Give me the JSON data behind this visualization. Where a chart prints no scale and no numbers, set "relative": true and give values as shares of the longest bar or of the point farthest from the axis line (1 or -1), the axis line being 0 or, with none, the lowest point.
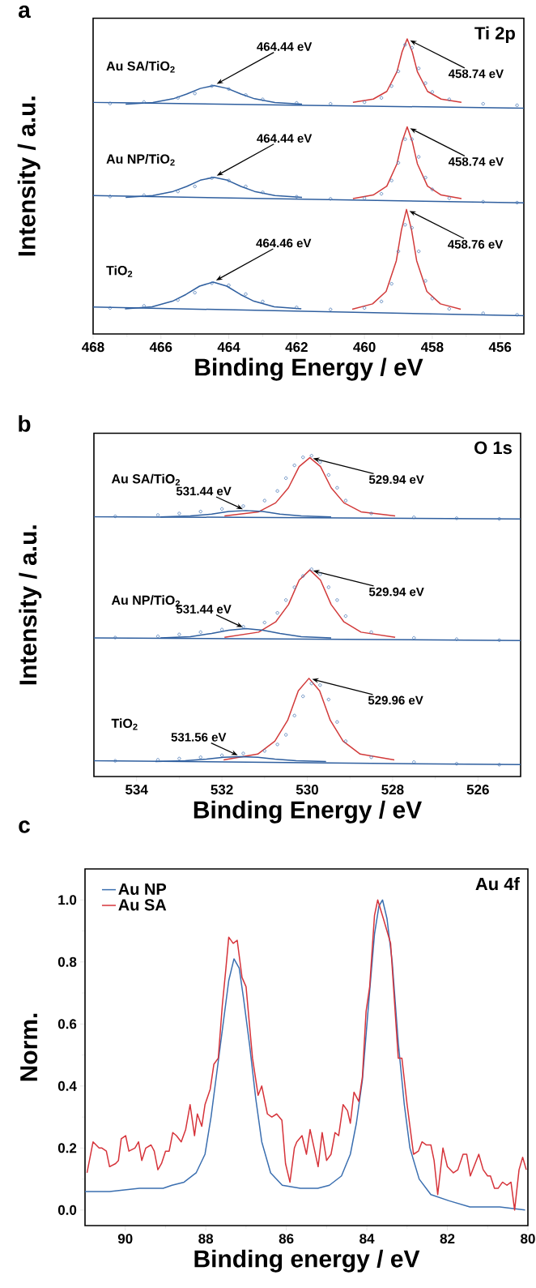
{
  "chart_data": [
    {
      "type": "line",
      "title": "Ti 2p",
      "xlabel": "Binding Energy / eV",
      "ylabel": "Intensity / a.u.",
      "relative": true,
      "xlim": [
        468,
        455.3
      ],
      "xticks": [
        468,
        466,
        464,
        462,
        460,
        458,
        456
      ],
      "series": [
        {
          "type": "line",
          "color": "#2f5f9f",
          "x": [
            467.04,
            466.24,
            465.64,
            465.24,
            464.84,
            464.44,
            464.04,
            463.64,
            463.24,
            462.64,
            461.84
          ],
          "values": [
            0.779,
            0.784,
            0.797,
            0.813,
            0.832,
            0.842,
            0.832,
            0.813,
            0.797,
            0.784,
            0.779
          ]
        },
        {
          "type": "line",
          "color": "#d23a3a",
          "x": [
            460.34,
            459.74,
            459.34,
            459.04,
            458.89,
            458.74,
            458.59,
            458.44,
            458.14,
            457.74,
            457.14
          ],
          "values": [
            0.785,
            0.796,
            0.822,
            0.889,
            0.956,
            1.0,
            0.956,
            0.889,
            0.822,
            0.796,
            0.785
          ]
        },
        {
          "type": "line",
          "color": "#2f5f9f",
          "x": [
            468,
            455.3
          ],
          "values": [
            0.785,
            0.765
          ]
        },
        {
          "type": "scatter",
          "name": "Au SA/TiO$_{2}$",
          "color": "#4a78b5",
          "marker": "circle",
          "x": [
            467.5,
            466.5,
            465.5,
            465,
            464.5,
            464,
            463.5,
            463,
            462,
            461,
            460,
            459.5,
            459.2,
            459,
            458.8,
            458.6,
            458.4,
            458.2,
            458,
            457.5,
            456.5,
            455.5
          ],
          "values": [
            0.781,
            0.786,
            0.8,
            0.815,
            0.84,
            0.83,
            0.81,
            0.795,
            0.783,
            0.78,
            0.785,
            0.8,
            0.84,
            0.89,
            0.98,
            0.97,
            0.9,
            0.85,
            0.82,
            0.795,
            0.78,
            0.775
          ]
        },
        {
          "type": "line",
          "color": "#2f5f9f",
          "x": [
            467.04,
            466.24,
            465.64,
            465.24,
            464.84,
            464.44,
            464.04,
            463.64,
            463.24,
            462.64,
            461.84
          ],
          "values": [
            0.463,
            0.469,
            0.483,
            0.5,
            0.521,
            0.531,
            0.521,
            0.5,
            0.483,
            0.469,
            0.463
          ]
        },
        {
          "type": "line",
          "color": "#d23a3a",
          "x": [
            460.34,
            459.74,
            459.34,
            459.04,
            458.89,
            458.74,
            458.59,
            458.44,
            458.14,
            457.74,
            457.14
          ],
          "values": [
            0.459,
            0.471,
            0.501,
            0.577,
            0.652,
            0.702,
            0.652,
            0.577,
            0.501,
            0.471,
            0.459
          ]
        },
        {
          "type": "line",
          "color": "#2f5f9f",
          "x": [
            468,
            455.3
          ],
          "values": [
            0.469,
            0.444
          ]
        },
        {
          "type": "scatter",
          "name": "Au NP/TiO$_{2}$",
          "color": "#4a78b5",
          "marker": "circle",
          "x": [
            467.5,
            466.5,
            465.5,
            465,
            464.5,
            464,
            463.5,
            463,
            462,
            461,
            460,
            459.5,
            459.2,
            459,
            458.8,
            458.6,
            458.4,
            458.2,
            458,
            457.5,
            456.5,
            455.5
          ],
          "values": [
            0.466,
            0.47,
            0.483,
            0.5,
            0.528,
            0.52,
            0.5,
            0.48,
            0.465,
            0.458,
            0.46,
            0.475,
            0.52,
            0.58,
            0.66,
            0.66,
            0.6,
            0.53,
            0.49,
            0.46,
            0.448,
            0.445
          ]
        },
        {
          "type": "line",
          "color": "#2f5f9f",
          "x": [
            467.06,
            466.26,
            465.66,
            465.26,
            464.86,
            464.46,
            464.06,
            463.66,
            463.26,
            462.66,
            461.86
          ],
          "values": [
            0.085,
            0.092,
            0.111,
            0.134,
            0.162,
            0.176,
            0.162,
            0.134,
            0.111,
            0.092,
            0.085
          ]
        },
        {
          "type": "line",
          "color": "#d23a3a",
          "x": [
            460.36,
            459.76,
            459.36,
            459.06,
            458.91,
            458.76,
            458.61,
            458.46,
            458.16,
            457.76,
            457.16
          ],
          "values": [
            0.084,
            0.102,
            0.144,
            0.248,
            0.352,
            0.422,
            0.352,
            0.248,
            0.144,
            0.102,
            0.084
          ]
        },
        {
          "type": "line",
          "color": "#2f5f9f",
          "x": [
            468,
            455.3
          ],
          "values": [
            0.091,
            0.062
          ]
        },
        {
          "type": "scatter",
          "name": "TiO$_{2}$",
          "color": "#4a78b5",
          "marker": "circle",
          "x": [
            467.5,
            466.5,
            465.5,
            465,
            464.5,
            464,
            463.5,
            463,
            462,
            461,
            460,
            459.5,
            459.2,
            459,
            458.8,
            458.6,
            458.4,
            458.2,
            458,
            457.5,
            456.5,
            455.5
          ],
          "values": [
            0.088,
            0.095,
            0.115,
            0.14,
            0.172,
            0.165,
            0.135,
            0.11,
            0.09,
            0.083,
            0.088,
            0.11,
            0.17,
            0.28,
            0.37,
            0.36,
            0.28,
            0.18,
            0.12,
            0.085,
            0.07,
            0.065
          ]
        }
      ],
      "annotations": [
        "a",
        {
          "text": "464.44 eV",
          "x": 464.44,
          "y": 0.842
        },
        {
          "text": "458.74 eV",
          "x": 458.74,
          "y": 1.0
        },
        {
          "text": "464.44 eV",
          "x": 464.44,
          "y": 0.531
        },
        {
          "text": "458.74 eV",
          "x": 458.74,
          "y": 0.702
        },
        {
          "text": "464.46 eV",
          "x": 464.46,
          "y": 0.176
        },
        {
          "text": "458.76 eV",
          "x": 458.76,
          "y": 0.422
        }
      ]
    },
    {
      "type": "line",
      "title": "O 1s",
      "xlabel": "Binding Energy / eV",
      "ylabel": "Intensity / a.u.",
      "relative": true,
      "xlim": [
        535,
        525
      ],
      "xticks": [
        534,
        532,
        530,
        528,
        526
      ],
      "series": [
        {
          "type": "line",
          "color": "#d23a3a",
          "x": [
            531.94,
            531.14,
            530.74,
            530.44,
            530.19,
            529.94,
            529.69,
            529.44,
            529.14,
            528.74,
            527.94
          ],
          "values": [
            0.812,
            0.825,
            0.853,
            0.9,
            0.966,
            0.994,
            0.966,
            0.9,
            0.853,
            0.825,
            0.812
          ]
        },
        {
          "type": "line",
          "color": "#2f5f9f",
          "x": [
            533.44,
            532.74,
            532.24,
            531.84,
            531.44,
            531.04,
            530.64,
            530.14,
            529.44
          ],
          "values": [
            0.809,
            0.812,
            0.818,
            0.826,
            0.829,
            0.826,
            0.818,
            0.812,
            0.809
          ]
        },
        {
          "type": "line",
          "color": "#2f5f9f",
          "x": [
            535,
            525
          ],
          "values": [
            0.81,
            0.803
          ]
        },
        {
          "type": "scatter",
          "name": "Au SA/TiO$_{2}$",
          "color": "#4a78b5",
          "marker": "circle",
          "x": [
            534.5,
            533.5,
            533,
            532.5,
            532,
            531.5,
            531,
            530.7,
            530.5,
            530.3,
            530.1,
            529.9,
            529.7,
            529.5,
            529.3,
            529.1,
            528.5,
            527.5,
            526.5,
            525.5
          ],
          "values": [
            0.811,
            0.815,
            0.82,
            0.826,
            0.834,
            0.843,
            0.86,
            0.89,
            0.93,
            0.97,
            0.995,
            1.0,
            0.98,
            0.94,
            0.9,
            0.86,
            0.82,
            0.808,
            0.805,
            0.803
          ]
        },
        {
          "type": "line",
          "color": "#d23a3a",
          "x": [
            531.94,
            531.14,
            530.74,
            530.44,
            530.19,
            529.94,
            529.69,
            529.44,
            529.14,
            528.74,
            527.94
          ],
          "values": [
            0.434,
            0.45,
            0.482,
            0.536,
            0.612,
            0.644,
            0.612,
            0.536,
            0.482,
            0.45,
            0.434
          ]
        },
        {
          "type": "line",
          "color": "#2f5f9f",
          "x": [
            533.44,
            532.74,
            532.24,
            531.84,
            531.44,
            531.04,
            530.64,
            530.14,
            529.44
          ],
          "values": [
            0.432,
            0.436,
            0.446,
            0.456,
            0.461,
            0.456,
            0.446,
            0.436,
            0.432
          ]
        },
        {
          "type": "line",
          "color": "#2f5f9f",
          "x": [
            535,
            525
          ],
          "values": [
            0.432,
            0.424
          ]
        },
        {
          "type": "scatter",
          "name": "Au NP/TiO$_{2}$",
          "color": "#4a78b5",
          "marker": "circle",
          "x": [
            534.5,
            533.5,
            533,
            532.5,
            532,
            531.5,
            531,
            530.7,
            530.5,
            530.3,
            530.1,
            529.9,
            529.7,
            529.5,
            529.3,
            529.1,
            528.5,
            527.5,
            526.5,
            525.5
          ],
          "values": [
            0.433,
            0.437,
            0.443,
            0.45,
            0.458,
            0.467,
            0.48,
            0.51,
            0.55,
            0.59,
            0.625,
            0.646,
            0.63,
            0.59,
            0.55,
            0.5,
            0.45,
            0.432,
            0.428,
            0.425
          ]
        },
        {
          "type": "line",
          "color": "#d23a3a",
          "x": [
            531.96,
            531.16,
            530.76,
            530.46,
            530.21,
            529.96,
            529.71,
            529.46,
            529.16,
            528.76,
            527.96
          ],
          "values": [
            0.052,
            0.07,
            0.11,
            0.175,
            0.267,
            0.306,
            0.267,
            0.175,
            0.11,
            0.07,
            0.052
          ]
        },
        {
          "type": "line",
          "color": "#2f5f9f",
          "x": [
            533.56,
            532.86,
            532.36,
            531.96,
            531.56,
            531.16,
            530.76,
            530.26,
            529.56
          ],
          "values": [
            0.047,
            0.049,
            0.054,
            0.06,
            0.062,
            0.06,
            0.054,
            0.049,
            0.047
          ]
        },
        {
          "type": "line",
          "color": "#2f5f9f",
          "x": [
            535,
            525
          ],
          "values": [
            0.049,
            0.037
          ]
        },
        {
          "type": "scatter",
          "name": "TiO$_{2}$",
          "color": "#4a78b5",
          "marker": "circle",
          "x": [
            534.5,
            533.5,
            533,
            532.5,
            532,
            531.5,
            531,
            530.7,
            530.5,
            530.3,
            530.1,
            529.9,
            529.7,
            529.5,
            529.3,
            529.1,
            528.5,
            527.5,
            526.5,
            525.5
          ],
          "values": [
            0.049,
            0.052,
            0.056,
            0.06,
            0.066,
            0.072,
            0.08,
            0.1,
            0.13,
            0.19,
            0.25,
            0.29,
            0.285,
            0.24,
            0.17,
            0.11,
            0.06,
            0.045,
            0.04,
            0.037
          ]
        }
      ],
      "annotations": [
        "b",
        {
          "text": "531.44 eV",
          "x": 531.44,
          "y": 0.829
        },
        {
          "text": "529.94 eV",
          "x": 529.94,
          "y": 0.994
        },
        {
          "text": "531.44 eV",
          "x": 531.44,
          "y": 0.461
        },
        {
          "text": "529.94 eV",
          "x": 529.94,
          "y": 0.644
        },
        {
          "text": "531.56 eV",
          "x": 531.56,
          "y": 0.062
        },
        {
          "text": "529.96 eV",
          "x": 529.96,
          "y": 0.306
        }
      ]
    },
    {
      "type": "line",
      "title": "Au 4f",
      "xlabel": "Binding energy / eV",
      "ylabel": "Norm.",
      "legend": "top left",
      "xlim": [
        91,
        80
      ],
      "xticks": [
        90,
        88,
        86,
        84,
        82,
        80
      ],
      "ylim": [
        -0.05,
        1.1
      ],
      "yticks": [
        {
          "value": 0,
          "label": "0.0"
        },
        0.2,
        0.4,
        0.6,
        0.8,
        {
          "value": 1,
          "label": "1.0"
        }
      ],
      "series": [
        {
          "name": "Au NP",
          "color": "#3b6fb0",
          "x": [
            91,
            90.39,
            89.65,
            89.06,
            88.84,
            88.54,
            88.24,
            88.02,
            87.87,
            87.73,
            87.58,
            87.43,
            87.3,
            87.17,
            87.06,
            86.91,
            86.76,
            86.61,
            86.39,
            86.1,
            85.65,
            85.22,
            84.93,
            84.63,
            84.41,
            84.26,
            84.11,
            83.96,
            83.81,
            83.7,
            83.61,
            83.5,
            83.37,
            83.22,
            83.07,
            82.93,
            82.7,
            82.41,
            81.96,
            81.44,
            80.7,
            80.07
          ],
          "values": [
            0.06,
            0.06,
            0.07,
            0.07,
            0.08,
            0.09,
            0.12,
            0.18,
            0.3,
            0.44,
            0.59,
            0.74,
            0.81,
            0.78,
            0.68,
            0.53,
            0.36,
            0.22,
            0.12,
            0.08,
            0.07,
            0.07,
            0.08,
            0.11,
            0.18,
            0.28,
            0.42,
            0.66,
            0.89,
            0.98,
            1.0,
            0.94,
            0.8,
            0.54,
            0.34,
            0.2,
            0.1,
            0.05,
            0.03,
            0.01,
            0.01,
            0.0
          ]
        },
        {
          "name": "Au SA",
          "color": "#d6333a",
          "x": [
            90.95,
            90.8,
            90.65,
            90.58,
            90.47,
            90.39,
            90.24,
            90.17,
            90.1,
            89.99,
            89.91,
            89.76,
            89.67,
            89.59,
            89.49,
            89.36,
            89.28,
            89.19,
            89.1,
            89.0,
            88.91,
            88.82,
            88.73,
            88.61,
            88.5,
            88.39,
            88.28,
            88.21,
            88.1,
            88.02,
            87.89,
            87.8,
            87.69,
            87.59,
            87.5,
            87.43,
            87.32,
            87.22,
            87.1,
            87.0,
            86.84,
            86.7,
            86.61,
            86.47,
            86.36,
            86.24,
            86.11,
            86.02,
            85.91,
            85.8,
            85.74,
            85.61,
            85.5,
            85.41,
            85.21,
            85.11,
            85.0,
            84.89,
            84.79,
            84.7,
            84.59,
            84.48,
            84.41,
            84.32,
            84.2,
            84.11,
            84.02,
            83.93,
            83.81,
            83.73,
            83.59,
            83.41,
            83.22,
            83.13,
            83.0,
            82.84,
            82.72,
            82.63,
            82.52,
            82.41,
            82.33,
            82.24,
            82.11,
            82.0,
            81.85,
            81.74,
            81.61,
            81.52,
            81.43,
            81.22,
            81.11,
            81.0,
            80.93,
            80.83,
            80.74,
            80.63,
            80.52,
            80.42,
            80.33,
            80.22,
            80.13,
            80.04
          ],
          "values": [
            0.12,
            0.22,
            0.2,
            0.2,
            0.19,
            0.14,
            0.15,
            0.16,
            0.23,
            0.24,
            0.19,
            0.2,
            0.22,
            0.16,
            0.2,
            0.21,
            0.19,
            0.13,
            0.15,
            0.19,
            0.19,
            0.25,
            0.24,
            0.22,
            0.26,
            0.34,
            0.24,
            0.31,
            0.27,
            0.34,
            0.39,
            0.47,
            0.49,
            0.66,
            0.78,
            0.88,
            0.86,
            0.87,
            0.75,
            0.72,
            0.49,
            0.37,
            0.4,
            0.31,
            0.3,
            0.31,
            0.29,
            0.15,
            0.09,
            0.2,
            0.22,
            0.24,
            0.18,
            0.26,
            0.14,
            0.25,
            0.16,
            0.18,
            0.25,
            0.24,
            0.34,
            0.32,
            0.28,
            0.38,
            0.35,
            0.43,
            0.64,
            0.72,
            0.95,
            1.0,
            0.94,
            0.86,
            0.49,
            0.49,
            0.34,
            0.18,
            0.19,
            0.22,
            0.21,
            0.21,
            0.16,
            0.05,
            0.2,
            0.14,
            0.12,
            0.13,
            0.18,
            0.18,
            0.11,
            0.18,
            0.13,
            0.11,
            0.11,
            0.07,
            0.07,
            0.09,
            0.08,
            0.09,
            0.0,
            0.13,
            0.17,
            0.13
          ]
        }
      ],
      "annotations": [
        "c"
      ]
    }
  ]
}
